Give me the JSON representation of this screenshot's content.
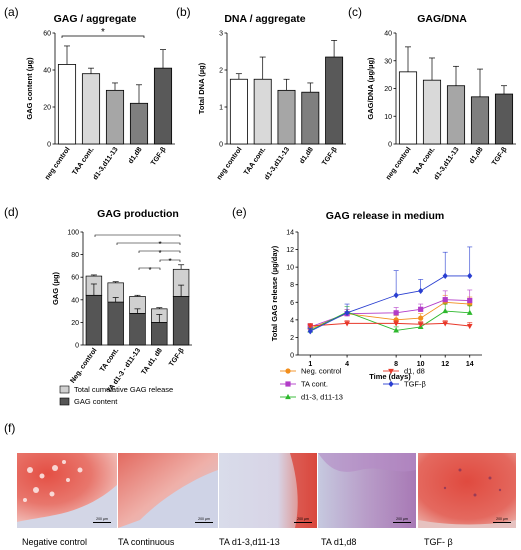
{
  "colors": {
    "bar_neg": "#ffffff",
    "bar_taa": "#d9d9d9",
    "bar_d1311": "#a6a6a6",
    "bar_d18": "#7f7f7f",
    "bar_tgf": "#595959",
    "stack_top": "#d0d0d0",
    "stack_bottom": "#555555",
    "line_neg": "#f28e1c",
    "line_ta": "#b23cc8",
    "line_d1311": "#2db82d",
    "line_d18": "#e8382a",
    "line_tgf": "#2a3fd1"
  },
  "panels": {
    "a": {
      "letter": "(a)",
      "title": "GAG / aggregate",
      "significance": "*"
    },
    "b": {
      "letter": "(b)",
      "title": "DNA / aggregate"
    },
    "c": {
      "letter": "(c)",
      "title": "GAG/DNA"
    },
    "d": {
      "letter": "(d)",
      "title": "GAG production",
      "significance": [
        "*",
        "*",
        "*",
        "*"
      ]
    },
    "e": {
      "letter": "(e)",
      "title": "GAG release in medium"
    },
    "f": {
      "letter": "(f)",
      "captions": [
        "Negative control",
        "TA continuous",
        "TA d1-3,d11-13",
        "TA d1,d8",
        "TGF- β"
      ],
      "scale_label": "200 µm"
    }
  },
  "chart_data": [
    {
      "id": "a",
      "type": "bar",
      "title": "GAG / aggregate",
      "categories": [
        "neg control",
        "TAA cont.",
        "d1-3,d11-13",
        "d1,d8",
        "TGF-β"
      ],
      "values": [
        43,
        38,
        29,
        22,
        41
      ],
      "errors": [
        10,
        3,
        4,
        10,
        10
      ],
      "ylabel": "GAG content (µg)",
      "ylim": [
        0,
        60
      ],
      "yticks": [
        "0",
        "20",
        "40",
        "60"
      ]
    },
    {
      "id": "b",
      "type": "bar",
      "title": "DNA / aggregate",
      "categories": [
        "neg control",
        "TAA cont.",
        "d1-3,d11-13",
        "d1,d8",
        "TGF-β"
      ],
      "values": [
        1.75,
        1.75,
        1.45,
        1.4,
        2.35
      ],
      "errors": [
        0.15,
        0.6,
        0.3,
        0.25,
        0.45
      ],
      "ylabel": "Total DNA (µg)",
      "ylim": [
        0,
        3
      ],
      "yticks": [
        "0",
        "1",
        "2",
        "3"
      ]
    },
    {
      "id": "c",
      "type": "bar",
      "title": "GAG/DNA",
      "categories": [
        "neg control",
        "TAA cont.",
        "d1-3,d11-13",
        "d1,d8",
        "TGF-β"
      ],
      "values": [
        26,
        23,
        21,
        17,
        18
      ],
      "errors": [
        9,
        8,
        7,
        10,
        3
      ],
      "ylabel": "GAG/DNA (µg/µg)",
      "ylim": [
        0,
        40
      ],
      "yticks": [
        "0",
        "10",
        "20",
        "30",
        "40"
      ]
    },
    {
      "id": "d",
      "type": "bar",
      "title": "GAG production",
      "categories": [
        "Neg. control",
        "TA cont.",
        "TA d1-3 - d11-13",
        "TA d1, d8",
        "TGF-β"
      ],
      "series": [
        {
          "name": "GAG content",
          "values": [
            44,
            38,
            28,
            20,
            43
          ],
          "errors": [
            10,
            4,
            4,
            7,
            10
          ]
        },
        {
          "name": "Total cumulative GAG release",
          "values": [
            17,
            17,
            15,
            12,
            24
          ],
          "errors": [
            1,
            1,
            1,
            1,
            4
          ]
        }
      ],
      "ylabel": "GAG (µg)",
      "ylim": [
        0,
        100
      ],
      "yticks": [
        "0",
        "20",
        "40",
        "60",
        "80",
        "100"
      ]
    },
    {
      "id": "e",
      "type": "line",
      "title": "GAG release in medium",
      "x": [
        1,
        4,
        8,
        10,
        12,
        14
      ],
      "xticks": [
        "1",
        "4",
        "8",
        "10",
        "12",
        "14"
      ],
      "xlabel": "Time (days)",
      "ylabel": "Total GAG release (µg/day)",
      "ylim": [
        0,
        14
      ],
      "yticks": [
        "0",
        "2",
        "4",
        "6",
        "8",
        "10",
        "12",
        "14"
      ],
      "series": [
        {
          "name": "Neg. control",
          "values": [
            3.0,
            4.7,
            4.0,
            4.2,
            6.0,
            5.8
          ],
          "errors": [
            0.3,
            0.5,
            0.5,
            0.5,
            0.8,
            0.8
          ],
          "marker": "circle"
        },
        {
          "name": "TA cont.",
          "values": [
            3.2,
            4.7,
            4.8,
            5.2,
            6.3,
            6.2
          ],
          "errors": [
            0.4,
            0.5,
            0.6,
            0.6,
            1.0,
            1.2
          ],
          "marker": "square"
        },
        {
          "name": "d1-3, d11-13",
          "values": [
            2.8,
            4.9,
            2.8,
            3.2,
            5.0,
            4.8
          ],
          "errors": [
            0.3,
            0.6,
            0.4,
            0.4,
            0.8,
            0.8
          ],
          "marker": "triangle"
        },
        {
          "name": "d1, d8",
          "values": [
            3.3,
            3.6,
            3.6,
            3.5,
            3.6,
            3.3
          ],
          "errors": [
            0.3,
            0.3,
            0.3,
            0.3,
            0.3,
            0.4
          ],
          "marker": "tridown"
        },
        {
          "name": "TGF-β",
          "values": [
            2.7,
            4.8,
            6.8,
            7.3,
            9.0,
            9.0
          ],
          "errors": [
            0.3,
            1.0,
            2.8,
            1.3,
            2.7,
            3.3
          ],
          "marker": "diamond"
        }
      ]
    }
  ]
}
